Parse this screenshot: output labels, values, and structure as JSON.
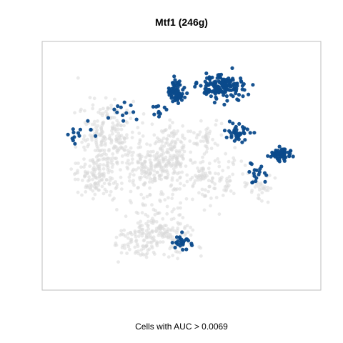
{
  "chart_data": {
    "type": "scatter",
    "title": "Mtf1 (246g)",
    "caption": "Cells with AUC > 0.0069",
    "xlabel": "",
    "ylabel": "",
    "axes_visible": false,
    "grid": false,
    "xlim": [
      0,
      100
    ],
    "ylim": [
      0,
      100
    ],
    "colors": {
      "background_cells": "#d9d9d9",
      "positive_cells": "#0b4a8b",
      "panel_border": "#bdbdbd"
    },
    "series": [
      {
        "category": "background",
        "clusters": [
          {
            "center": [
              22,
              62
            ],
            "spread": [
              10,
              14
            ],
            "n": 230
          },
          {
            "center": [
              18,
              45
            ],
            "spread": [
              8,
              8
            ],
            "n": 120
          },
          {
            "center": [
              38,
              48
            ],
            "spread": [
              9,
              12
            ],
            "n": 190
          },
          {
            "center": [
              47,
              55
            ],
            "spread": [
              6,
              10
            ],
            "n": 130
          },
          {
            "center": [
              58,
              45
            ],
            "spread": [
              5,
              9
            ],
            "n": 70
          },
          {
            "center": [
              42,
              22
            ],
            "spread": [
              12,
              8
            ],
            "n": 170
          },
          {
            "center": [
              34,
              15
            ],
            "spread": [
              8,
              5
            ],
            "n": 60
          },
          {
            "center": [
              68,
              45
            ],
            "spread": [
              5,
              8
            ],
            "n": 40
          },
          {
            "center": [
              80,
              42
            ],
            "spread": [
              5,
              6
            ],
            "n": 35
          },
          {
            "center": [
              60,
              62
            ],
            "spread": [
              4,
              6
            ],
            "n": 40
          }
        ]
      },
      {
        "category": "AUC > 0.0069",
        "clusters": [
          {
            "center": [
              48,
              82
            ],
            "spread": [
              3,
              5
            ],
            "n": 70
          },
          {
            "center": [
              66,
              84
            ],
            "spread": [
              7,
              4.5
            ],
            "n": 160
          },
          {
            "center": [
              72,
              64
            ],
            "spread": [
              4,
              4
            ],
            "n": 40
          },
          {
            "center": [
              88,
              55
            ],
            "spread": [
              3.5,
              2
            ],
            "n": 60
          },
          {
            "center": [
              79,
              46
            ],
            "spread": [
              4,
              4
            ],
            "n": 18
          },
          {
            "center": [
              51,
              17
            ],
            "spread": [
              3,
              2.5
            ],
            "n": 25
          },
          {
            "center": [
              11,
              65
            ],
            "spread": [
              4,
              4
            ],
            "n": 14
          },
          {
            "center": [
              27,
              73
            ],
            "spread": [
              4,
              4
            ],
            "n": 12
          },
          {
            "center": [
              40,
              73
            ],
            "spread": [
              4,
              3
            ],
            "n": 10
          }
        ]
      }
    ]
  }
}
